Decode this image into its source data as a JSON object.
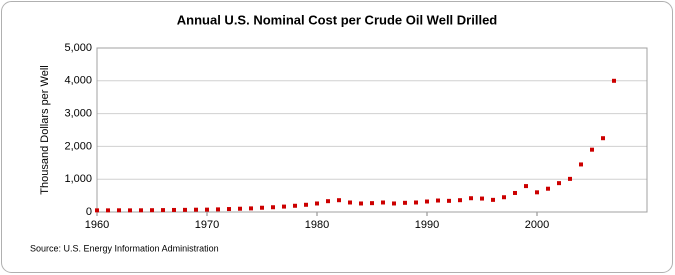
{
  "chart_data": {
    "type": "scatter",
    "title": "Annual U.S. Nominal Cost per Crude Oil Well Drilled",
    "y_label": "Thousand Dollars per Well",
    "source": "Source: U.S. Energy Information Administration",
    "x": [
      1960,
      1961,
      1962,
      1963,
      1964,
      1965,
      1966,
      1967,
      1968,
      1969,
      1970,
      1971,
      1972,
      1973,
      1974,
      1975,
      1976,
      1977,
      1978,
      1979,
      1980,
      1981,
      1982,
      1983,
      1984,
      1985,
      1986,
      1987,
      1988,
      1989,
      1990,
      1991,
      1992,
      1993,
      1994,
      1995,
      1996,
      1997,
      1998,
      1999,
      2000,
      2001,
      2002,
      2003,
      2004,
      2005,
      2006,
      2007
    ],
    "series": [
      {
        "color": "#cc0000",
        "values": [
          50,
          50,
          52,
          50,
          52,
          55,
          58,
          62,
          65,
          70,
          72,
          80,
          90,
          100,
          110,
          130,
          145,
          165,
          190,
          220,
          260,
          330,
          360,
          290,
          260,
          270,
          290,
          260,
          280,
          290,
          320,
          350,
          340,
          360,
          420,
          410,
          370,
          450,
          580,
          790,
          600,
          710,
          880,
          1010,
          1450,
          1900,
          2250,
          4000
        ]
      }
    ],
    "xlim": [
      1960,
      2010
    ],
    "xticks": [
      1960,
      1970,
      1980,
      1990,
      2000
    ],
    "ylim": [
      0,
      5000
    ],
    "yticks": [
      0,
      {
        "value": 1000,
        "label": "1,000"
      },
      {
        "value": 2000,
        "label": "2,000"
      },
      {
        "value": 3000,
        "label": "3,000"
      },
      {
        "value": 4000,
        "label": "4,000"
      },
      {
        "value": 5000,
        "label": "5,000"
      }
    ],
    "grid": true
  }
}
